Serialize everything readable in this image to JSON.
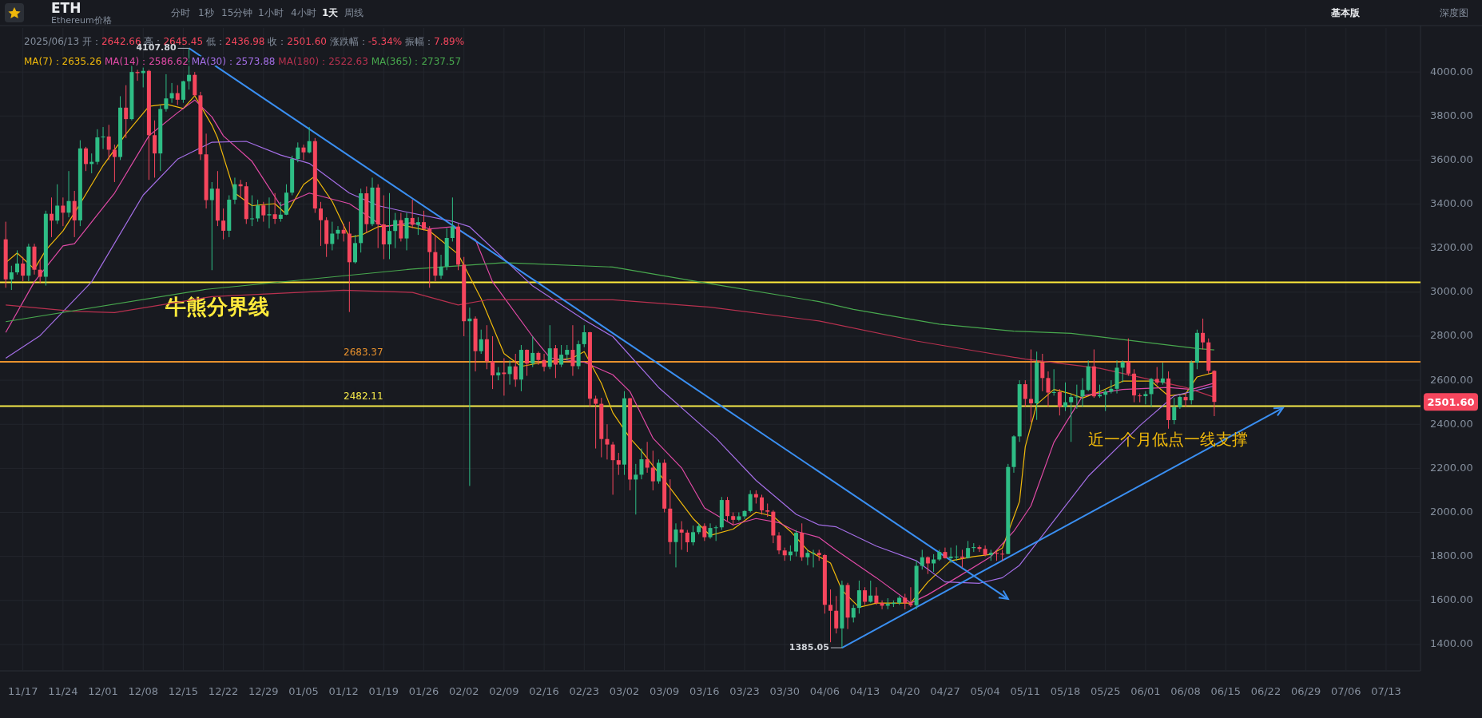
{
  "chart_data": {
    "type": "candlestick",
    "title": "ETH",
    "subtitle": "Ethereum价格",
    "x": [
      "2024-11-14",
      "2024-11-15",
      "2024-11-16",
      "2024-11-17",
      "2024-11-18",
      "2024-11-19",
      "2024-11-20",
      "2024-11-21",
      "2024-11-22",
      "2024-11-23",
      "2024-11-24",
      "2024-11-25",
      "2024-11-26",
      "2024-11-27",
      "2024-11-28",
      "2024-11-29",
      "2024-11-30",
      "2024-12-01",
      "2024-12-02",
      "2024-12-03",
      "2024-12-04",
      "2024-12-05",
      "2024-12-06",
      "2024-12-07",
      "2024-12-08",
      "2024-12-09",
      "2024-12-10",
      "2024-12-11",
      "2024-12-12",
      "2024-12-13",
      "2024-12-14",
      "2024-12-15",
      "2024-12-16",
      "2024-12-17",
      "2024-12-18",
      "2024-12-19",
      "2024-12-20",
      "2024-12-21",
      "2024-12-22",
      "2024-12-23",
      "2024-12-24",
      "2024-12-25",
      "2024-12-26",
      "2024-12-27",
      "2024-12-28",
      "2024-12-29",
      "2024-12-30",
      "2024-12-31",
      "2025-01-01",
      "2025-01-02",
      "2025-01-03",
      "2025-01-04",
      "2025-01-05",
      "2025-01-06",
      "2025-01-07",
      "2025-01-08",
      "2025-01-09",
      "2025-01-10",
      "2025-01-11",
      "2025-01-12",
      "2025-01-13",
      "2025-01-14",
      "2025-01-15",
      "2025-01-16",
      "2025-01-17",
      "2025-01-18",
      "2025-01-19",
      "2025-01-20",
      "2025-01-21",
      "2025-01-22",
      "2025-01-23",
      "2025-01-24",
      "2025-01-25",
      "2025-01-26",
      "2025-01-27",
      "2025-01-28",
      "2025-01-29",
      "2025-01-30",
      "2025-01-31",
      "2025-02-01",
      "2025-02-02",
      "2025-02-03",
      "2025-02-04",
      "2025-02-05",
      "2025-02-06",
      "2025-02-07",
      "2025-02-08",
      "2025-02-09",
      "2025-02-10",
      "2025-02-11",
      "2025-02-12",
      "2025-02-13",
      "2025-02-14",
      "2025-02-15",
      "2025-02-16",
      "2025-02-17",
      "2025-02-18",
      "2025-02-19",
      "2025-02-20",
      "2025-02-21",
      "2025-02-22",
      "2025-02-23",
      "2025-02-24",
      "2025-02-25",
      "2025-02-26",
      "2025-02-27",
      "2025-02-28",
      "2025-03-01",
      "2025-03-02",
      "2025-03-03",
      "2025-03-04",
      "2025-03-05",
      "2025-03-06",
      "2025-03-07",
      "2025-03-08",
      "2025-03-09",
      "2025-03-10",
      "2025-03-11",
      "2025-03-12",
      "2025-03-13",
      "2025-03-14",
      "2025-03-15",
      "2025-03-16",
      "2025-03-17",
      "2025-03-18",
      "2025-03-19",
      "2025-03-20",
      "2025-03-21",
      "2025-03-22",
      "2025-03-23",
      "2025-03-24",
      "2025-03-25",
      "2025-03-26",
      "2025-03-27",
      "2025-03-28",
      "2025-03-29",
      "2025-03-30",
      "2025-03-31",
      "2025-04-01",
      "2025-04-02",
      "2025-04-03",
      "2025-04-04",
      "2025-04-05",
      "2025-04-06",
      "2025-04-07",
      "2025-04-08",
      "2025-04-09",
      "2025-04-10",
      "2025-04-11",
      "2025-04-12",
      "2025-04-13",
      "2025-04-14",
      "2025-04-15",
      "2025-04-16",
      "2025-04-17",
      "2025-04-18",
      "2025-04-19",
      "2025-04-20",
      "2025-04-21",
      "2025-04-22",
      "2025-04-23",
      "2025-04-24",
      "2025-04-25",
      "2025-04-26",
      "2025-04-27",
      "2025-04-28",
      "2025-04-29",
      "2025-04-30",
      "2025-05-01",
      "2025-05-02",
      "2025-05-03",
      "2025-05-04",
      "2025-05-05",
      "2025-05-06",
      "2025-05-07",
      "2025-05-08",
      "2025-05-09",
      "2025-05-10",
      "2025-05-11",
      "2025-05-12",
      "2025-05-13",
      "2025-05-14",
      "2025-05-15",
      "2025-05-16",
      "2025-05-17",
      "2025-05-18",
      "2025-05-19",
      "2025-05-20",
      "2025-05-21",
      "2025-05-22",
      "2025-05-23",
      "2025-05-24",
      "2025-05-25",
      "2025-05-26",
      "2025-05-27",
      "2025-05-28",
      "2025-05-29",
      "2025-05-30",
      "2025-05-31",
      "2025-06-01",
      "2025-06-02",
      "2025-06-03",
      "2025-06-04",
      "2025-06-05",
      "2025-06-06",
      "2025-06-07",
      "2025-06-08",
      "2025-06-09",
      "2025-06-10",
      "2025-06-11",
      "2025-06-12",
      "2025-06-13"
    ],
    "ohlc": [
      [
        3240,
        3320,
        3020,
        3058
      ],
      [
        3058,
        3120,
        3010,
        3090
      ],
      [
        3090,
        3190,
        3080,
        3130
      ],
      [
        3130,
        3160,
        3050,
        3075
      ],
      [
        3075,
        3220,
        3050,
        3207
      ],
      [
        3207,
        3220,
        3080,
        3102
      ],
      [
        3102,
        3150,
        3040,
        3070
      ],
      [
        3070,
        3370,
        3030,
        3356
      ],
      [
        3356,
        3430,
        3250,
        3325
      ],
      [
        3325,
        3490,
        3310,
        3393
      ],
      [
        3393,
        3430,
        3300,
        3361
      ],
      [
        3361,
        3550,
        3340,
        3414
      ],
      [
        3414,
        3460,
        3250,
        3326
      ],
      [
        3326,
        3690,
        3300,
        3653
      ],
      [
        3653,
        3660,
        3550,
        3582
      ],
      [
        3582,
        3630,
        3540,
        3592
      ],
      [
        3592,
        3740,
        3580,
        3703
      ],
      [
        3703,
        3750,
        3650,
        3707
      ],
      [
        3707,
        3760,
        3600,
        3647
      ],
      [
        3647,
        3670,
        3500,
        3614
      ],
      [
        3614,
        3890,
        3600,
        3838
      ],
      [
        3838,
        3940,
        3700,
        3786
      ],
      [
        3786,
        4030,
        3780,
        4000
      ],
      [
        4000,
        4010,
        3960,
        3995
      ],
      [
        3995,
        4020,
        3930,
        4005
      ],
      [
        4005,
        4010,
        3510,
        3713
      ],
      [
        3713,
        3780,
        3520,
        3630
      ],
      [
        3630,
        3850,
        3550,
        3832
      ],
      [
        3832,
        3990,
        3820,
        3880
      ],
      [
        3880,
        3950,
        3860,
        3904
      ],
      [
        3904,
        3940,
        3850,
        3874
      ],
      [
        3874,
        3960,
        3860,
        3958
      ],
      [
        3958,
        4107.8,
        3920,
        3987
      ],
      [
        3987,
        4000,
        3890,
        3894
      ],
      [
        3894,
        3910,
        3600,
        3626
      ],
      [
        3626,
        3720,
        3380,
        3418
      ],
      [
        3418,
        3500,
        3100,
        3470
      ],
      [
        3470,
        3550,
        3300,
        3325
      ],
      [
        3325,
        3380,
        3240,
        3279
      ],
      [
        3279,
        3440,
        3250,
        3420
      ],
      [
        3420,
        3520,
        3400,
        3490
      ],
      [
        3490,
        3510,
        3430,
        3481
      ],
      [
        3481,
        3500,
        3310,
        3332
      ],
      [
        3332,
        3440,
        3300,
        3335
      ],
      [
        3335,
        3420,
        3320,
        3394
      ],
      [
        3394,
        3410,
        3320,
        3349
      ],
      [
        3349,
        3430,
        3290,
        3354
      ],
      [
        3354,
        3450,
        3310,
        3333
      ],
      [
        3333,
        3410,
        3320,
        3352
      ],
      [
        3352,
        3490,
        3350,
        3452
      ],
      [
        3452,
        3620,
        3440,
        3605
      ],
      [
        3605,
        3680,
        3590,
        3657
      ],
      [
        3657,
        3670,
        3600,
        3635
      ],
      [
        3635,
        3750,
        3630,
        3686
      ],
      [
        3686,
        3700,
        3360,
        3380
      ],
      [
        3380,
        3410,
        3210,
        3327
      ],
      [
        3327,
        3340,
        3160,
        3219
      ],
      [
        3219,
        3320,
        3190,
        3266
      ],
      [
        3266,
        3300,
        3240,
        3283
      ],
      [
        3283,
        3310,
        3230,
        3266
      ],
      [
        3266,
        3320,
        2910,
        3136
      ],
      [
        3136,
        3260,
        3130,
        3223
      ],
      [
        3223,
        3470,
        3180,
        3449
      ],
      [
        3449,
        3480,
        3270,
        3309
      ],
      [
        3309,
        3520,
        3300,
        3475
      ],
      [
        3475,
        3490,
        3200,
        3308
      ],
      [
        3308,
        3440,
        3150,
        3217
      ],
      [
        3217,
        3450,
        3150,
        3278
      ],
      [
        3278,
        3360,
        3200,
        3327
      ],
      [
        3327,
        3360,
        3230,
        3244
      ],
      [
        3244,
        3360,
        3190,
        3337
      ],
      [
        3337,
        3420,
        3290,
        3306
      ],
      [
        3306,
        3340,
        3260,
        3318
      ],
      [
        3318,
        3370,
        3280,
        3287
      ],
      [
        3287,
        3300,
        3020,
        3182
      ],
      [
        3182,
        3260,
        3050,
        3075
      ],
      [
        3075,
        3170,
        3060,
        3116
      ],
      [
        3116,
        3290,
        3100,
        3246
      ],
      [
        3246,
        3430,
        3230,
        3298
      ],
      [
        3298,
        3310,
        3100,
        3125
      ],
      [
        3125,
        3160,
        2800,
        2868
      ],
      [
        2868,
        2930,
        2120,
        2880
      ],
      [
        2880,
        2890,
        2640,
        2732
      ],
      [
        2732,
        2830,
        2720,
        2786
      ],
      [
        2786,
        2850,
        2650,
        2686
      ],
      [
        2686,
        2800,
        2560,
        2622
      ],
      [
        2622,
        2660,
        2600,
        2635
      ],
      [
        2635,
        2700,
        2530,
        2628
      ],
      [
        2628,
        2690,
        2580,
        2663
      ],
      [
        2663,
        2720,
        2570,
        2603
      ],
      [
        2603,
        2760,
        2550,
        2738
      ],
      [
        2738,
        2740,
        2620,
        2676
      ],
      [
        2676,
        2800,
        2660,
        2724
      ],
      [
        2724,
        2730,
        2670,
        2692
      ],
      [
        2692,
        2720,
        2640,
        2661
      ],
      [
        2661,
        2850,
        2650,
        2745
      ],
      [
        2745,
        2760,
        2610,
        2671
      ],
      [
        2671,
        2760,
        2660,
        2716
      ],
      [
        2716,
        2760,
        2690,
        2738
      ],
      [
        2738,
        2850,
        2620,
        2664
      ],
      [
        2664,
        2780,
        2650,
        2764
      ],
      [
        2764,
        2850,
        2750,
        2818
      ],
      [
        2818,
        2820,
        2480,
        2516
      ],
      [
        2516,
        2530,
        2290,
        2493
      ],
      [
        2493,
        2520,
        2250,
        2333
      ],
      [
        2333,
        2400,
        2240,
        2308
      ],
      [
        2308,
        2320,
        2080,
        2237
      ],
      [
        2237,
        2270,
        2170,
        2217
      ],
      [
        2217,
        2550,
        2170,
        2518
      ],
      [
        2518,
        2520,
        2100,
        2149
      ],
      [
        2149,
        2220,
        1990,
        2171
      ],
      [
        2171,
        2290,
        2150,
        2241
      ],
      [
        2241,
        2320,
        2180,
        2203
      ],
      [
        2203,
        2280,
        2100,
        2141
      ],
      [
        2141,
        2240,
        2130,
        2225
      ],
      [
        2225,
        2240,
        2000,
        2017
      ],
      [
        2017,
        2150,
        1810,
        1865
      ],
      [
        1865,
        1950,
        1750,
        1922
      ],
      [
        1922,
        1960,
        1830,
        1908
      ],
      [
        1908,
        1920,
        1820,
        1864
      ],
      [
        1864,
        1940,
        1850,
        1910
      ],
      [
        1910,
        1950,
        1900,
        1938
      ],
      [
        1938,
        1950,
        1870,
        1887
      ],
      [
        1887,
        1950,
        1880,
        1929
      ],
      [
        1929,
        1940,
        1870,
        1932
      ],
      [
        1932,
        2070,
        1920,
        2056
      ],
      [
        2056,
        2070,
        1960,
        1983
      ],
      [
        1983,
        2000,
        1940,
        1966
      ],
      [
        1966,
        2000,
        1960,
        1982
      ],
      [
        1982,
        2010,
        1970,
        2006
      ],
      [
        2006,
        2100,
        2000,
        2083
      ],
      [
        2083,
        2100,
        2040,
        2068
      ],
      [
        2068,
        2080,
        1990,
        2009
      ],
      [
        2009,
        2040,
        1980,
        2003
      ],
      [
        2003,
        2010,
        1860,
        1895
      ],
      [
        1895,
        1910,
        1810,
        1827
      ],
      [
        1827,
        1840,
        1780,
        1805
      ],
      [
        1805,
        1850,
        1780,
        1822
      ],
      [
        1822,
        1920,
        1800,
        1907
      ],
      [
        1907,
        1950,
        1780,
        1796
      ],
      [
        1796,
        1830,
        1760,
        1816
      ],
      [
        1816,
        1830,
        1750,
        1816
      ],
      [
        1816,
        1830,
        1780,
        1806
      ],
      [
        1806,
        1810,
        1540,
        1580
      ],
      [
        1580,
        1650,
        1410,
        1553
      ],
      [
        1553,
        1620,
        1450,
        1473
      ],
      [
        1473,
        1690,
        1385.05,
        1670
      ],
      [
        1670,
        1680,
        1470,
        1522
      ],
      [
        1522,
        1580,
        1500,
        1566
      ],
      [
        1566,
        1690,
        1540,
        1646
      ],
      [
        1646,
        1660,
        1580,
        1594
      ],
      [
        1594,
        1690,
        1590,
        1622
      ],
      [
        1622,
        1660,
        1580,
        1588
      ],
      [
        1588,
        1600,
        1560,
        1576
      ],
      [
        1576,
        1610,
        1560,
        1584
      ],
      [
        1584,
        1600,
        1570,
        1589
      ],
      [
        1589,
        1620,
        1580,
        1612
      ],
      [
        1612,
        1630,
        1560,
        1587
      ],
      [
        1587,
        1660,
        1570,
        1578
      ],
      [
        1578,
        1780,
        1560,
        1757
      ],
      [
        1757,
        1830,
        1740,
        1796
      ],
      [
        1796,
        1800,
        1720,
        1768
      ],
      [
        1768,
        1810,
        1730,
        1786
      ],
      [
        1786,
        1830,
        1780,
        1820
      ],
      [
        1820,
        1840,
        1790,
        1792
      ],
      [
        1792,
        1840,
        1770,
        1799
      ],
      [
        1799,
        1850,
        1780,
        1799
      ],
      [
        1799,
        1830,
        1750,
        1793
      ],
      [
        1793,
        1870,
        1790,
        1838
      ],
      [
        1838,
        1860,
        1820,
        1842
      ],
      [
        1842,
        1850,
        1820,
        1834
      ],
      [
        1834,
        1850,
        1800,
        1807
      ],
      [
        1807,
        1830,
        1780,
        1816
      ],
      [
        1816,
        1820,
        1780,
        1812
      ],
      [
        1812,
        1830,
        1780,
        1811
      ],
      [
        1811,
        2220,
        1810,
        2206
      ],
      [
        2206,
        2350,
        2180,
        2345
      ],
      [
        2345,
        2600,
        2320,
        2582
      ],
      [
        2582,
        2600,
        2480,
        2515
      ],
      [
        2515,
        2740,
        2410,
        2495
      ],
      [
        2495,
        2730,
        2420,
        2680
      ],
      [
        2680,
        2720,
        2550,
        2610
      ],
      [
        2610,
        2640,
        2480,
        2544
      ],
      [
        2544,
        2650,
        2530,
        2546
      ],
      [
        2546,
        2560,
        2440,
        2479
      ],
      [
        2479,
        2590,
        2460,
        2500
      ],
      [
        2500,
        2540,
        2320,
        2524
      ],
      [
        2524,
        2580,
        2470,
        2526
      ],
      [
        2526,
        2610,
        2480,
        2556
      ],
      [
        2556,
        2690,
        2550,
        2663
      ],
      [
        2663,
        2740,
        2520,
        2527
      ],
      [
        2527,
        2580,
        2520,
        2534
      ],
      [
        2534,
        2560,
        2460,
        2548
      ],
      [
        2548,
        2600,
        2540,
        2561
      ],
      [
        2561,
        2690,
        2540,
        2657
      ],
      [
        2657,
        2690,
        2590,
        2683
      ],
      [
        2683,
        2790,
        2620,
        2630
      ],
      [
        2630,
        2650,
        2500,
        2531
      ],
      [
        2531,
        2540,
        2500,
        2528
      ],
      [
        2528,
        2550,
        2490,
        2537
      ],
      [
        2537,
        2610,
        2480,
        2606
      ],
      [
        2606,
        2660,
        2580,
        2589
      ],
      [
        2589,
        2680,
        2580,
        2608
      ],
      [
        2608,
        2640,
        2380,
        2419
      ],
      [
        2419,
        2520,
        2400,
        2478
      ],
      [
        2478,
        2530,
        2470,
        2524
      ],
      [
        2524,
        2540,
        2480,
        2509
      ],
      [
        2509,
        2690,
        2490,
        2680
      ],
      [
        2680,
        2830,
        2650,
        2815
      ],
      [
        2815,
        2880,
        2740,
        2772
      ],
      [
        2772,
        2790,
        2630,
        2643
      ],
      [
        2642.66,
        2645.45,
        2436.98,
        2501.6
      ]
    ],
    "series": [
      {
        "name": "MA(7)：",
        "type": "line",
        "color": "#f0b90b",
        "x": [
          "2024-11-14",
          "2024-11-16",
          "2024-11-19",
          "2024-11-21",
          "2024-11-24",
          "2024-11-27",
          "2024-12-01",
          "2024-12-05",
          "2024-12-09",
          "2024-12-12",
          "2024-12-15",
          "2024-12-17",
          "2024-12-20",
          "2024-12-21",
          "2024-12-24",
          "2024-12-27",
          "2024-12-31",
          "2025-01-02",
          "2025-01-05",
          "2025-01-07",
          "2025-01-10",
          "2025-01-13",
          "2025-01-15",
          "2025-01-18",
          "2025-01-22",
          "2025-01-27",
          "2025-02-01",
          "2025-02-05",
          "2025-02-09",
          "2025-02-12",
          "2025-02-16",
          "2025-02-21",
          "2025-02-23",
          "2025-02-26",
          "2025-02-28",
          "2025-03-03",
          "2025-03-05",
          "2025-03-09",
          "2025-03-14",
          "2025-03-17",
          "2025-03-21",
          "2025-03-25",
          "2025-03-28",
          "2025-03-31",
          "2025-04-03",
          "2025-04-07",
          "2025-04-09",
          "2025-04-12",
          "2025-04-15",
          "2025-04-21",
          "2025-04-24",
          "2025-04-28",
          "2025-05-02",
          "2025-05-05",
          "2025-05-07",
          "2025-05-10",
          "2025-05-11",
          "2025-05-13",
          "2025-05-16",
          "2025-05-19",
          "2025-05-21",
          "2025-05-24",
          "2025-05-28",
          "2025-06-02",
          "2025-06-05",
          "2025-06-08",
          "2025-06-10",
          "2025-06-13"
        ],
        "values": [
          3134,
          3178,
          3105,
          3191,
          3278,
          3402,
          3575,
          3719,
          3844,
          3854,
          3834,
          3892,
          3758,
          3700,
          3450,
          3393,
          3402,
          3354,
          3489,
          3527,
          3412,
          3249,
          3258,
          3297,
          3306,
          3278,
          3172,
          2970,
          2721,
          2663,
          2682,
          2702,
          2730,
          2586,
          2452,
          2337,
          2279,
          2145,
          1972,
          1895,
          1924,
          2001,
          1982,
          1914,
          1828,
          1770,
          1646,
          1569,
          1588,
          1588,
          1684,
          1780,
          1799,
          1809,
          1838,
          2050,
          2298,
          2490,
          2558,
          2538,
          2519,
          2548,
          2596,
          2596,
          2529,
          2538,
          2615,
          2635
        ]
      },
      {
        "name": "MA(14)：",
        "type": "line",
        "color": "#e04aa6",
        "x": [
          "2024-11-14",
          "2024-11-19",
          "2024-11-24",
          "2024-11-26",
          "2024-12-03",
          "2024-12-09",
          "2024-12-14",
          "2024-12-17",
          "2024-12-20",
          "2024-12-22",
          "2024-12-27",
          "2025-01-01",
          "2025-01-06",
          "2025-01-13",
          "2025-01-19",
          "2025-01-24",
          "2025-01-27",
          "2025-01-31",
          "2025-02-04",
          "2025-02-07",
          "2025-02-14",
          "2025-02-17",
          "2025-02-23",
          "2025-02-28",
          "2025-03-03",
          "2025-03-07",
          "2025-03-12",
          "2025-03-16",
          "2025-03-21",
          "2025-03-25",
          "2025-03-29",
          "2025-04-01",
          "2025-04-05",
          "2025-04-08",
          "2025-04-15",
          "2025-04-21",
          "2025-04-24",
          "2025-04-29",
          "2025-05-05",
          "2025-05-09",
          "2025-05-12",
          "2025-05-16",
          "2025-05-21",
          "2025-05-28",
          "2025-06-05",
          "2025-06-09",
          "2025-06-13"
        ],
        "values": [
          2817,
          3047,
          3210,
          3220,
          3450,
          3710,
          3815,
          3873,
          3796,
          3710,
          3594,
          3393,
          3450,
          3402,
          3297,
          3316,
          3287,
          3297,
          3239,
          3047,
          2798,
          2702,
          2682,
          2625,
          2548,
          2337,
          2202,
          2020,
          1943,
          1972,
          1953,
          1914,
          1886,
          1828,
          1703,
          1588,
          1626,
          1703,
          1799,
          1914,
          2030,
          2318,
          2529,
          2558,
          2567,
          2558,
          2587
        ]
      },
      {
        "name": "MA(30)：",
        "type": "line",
        "color": "#a46ee6",
        "x": [
          "2024-11-14",
          "2024-11-20",
          "2024-11-29",
          "2024-12-08",
          "2024-12-14",
          "2024-12-20",
          "2024-12-26",
          "2025-01-01",
          "2025-01-06",
          "2025-01-13",
          "2025-01-18",
          "2025-01-23",
          "2025-01-31",
          "2025-02-03",
          "2025-02-14",
          "2025-02-23",
          "2025-02-28",
          "2025-03-08",
          "2025-03-18",
          "2025-03-25",
          "2025-04-01",
          "2025-04-05",
          "2025-04-08",
          "2025-04-15",
          "2025-04-22",
          "2025-04-27",
          "2025-05-03",
          "2025-05-07",
          "2025-05-10",
          "2025-05-22",
          "2025-05-31",
          "2025-06-06",
          "2025-06-13"
        ],
        "values": [
          2700,
          2803,
          3047,
          3441,
          3604,
          3681,
          3685,
          3623,
          3585,
          3450,
          3393,
          3364,
          3322,
          3297,
          3028,
          2874,
          2798,
          2567,
          2337,
          2145,
          1991,
          1943,
          1934,
          1847,
          1780,
          1684,
          1678,
          1703,
          1760,
          2164,
          2394,
          2529,
          2574
        ]
      },
      {
        "name": "MA(180)：",
        "type": "line",
        "color": "#b8314f",
        "x": [
          "2024-11-14",
          "2024-11-26",
          "2024-12-03",
          "2024-12-20",
          "2025-01-12",
          "2025-01-24",
          "2025-02-01",
          "2025-02-06",
          "2025-02-28",
          "2025-03-17",
          "2025-04-05",
          "2025-04-22",
          "2025-05-03",
          "2025-05-11",
          "2025-05-24",
          "2025-06-08",
          "2025-06-13"
        ],
        "values": [
          2942,
          2913,
          2907,
          2980,
          3009,
          2999,
          2942,
          2965,
          2965,
          2932,
          2869,
          2778,
          2730,
          2696,
          2654,
          2567,
          2523
        ]
      },
      {
        "name": "MA(365)：",
        "type": "line",
        "color": "#48a84e",
        "x": [
          "2024-11-14",
          "2024-12-19",
          "2025-01-24",
          "2025-02-09",
          "2025-02-28",
          "2025-03-15",
          "2025-04-05",
          "2025-04-11",
          "2025-04-26",
          "2025-05-09",
          "2025-05-19",
          "2025-06-10",
          "2025-06-13"
        ],
        "values": [
          2866,
          3013,
          3105,
          3134,
          3114,
          3047,
          2957,
          2922,
          2855,
          2823,
          2813,
          2744,
          2738
        ]
      },
      {
        "type": "line",
        "color": "#3a8ff2",
        "x": [
          "2024-12-16",
          "2025-05-08"
        ],
        "values": [
          4108,
          1607
        ]
      },
      {
        "type": "line",
        "color": "#3a8ff2",
        "x": [
          "2025-04-09",
          "2025-06-25"
        ],
        "values": [
          1385,
          2475
        ]
      }
    ],
    "xlim": [
      "2024-11-13",
      "2025-07-19"
    ],
    "ylim": [
      1280,
      4200
    ],
    "xticks": [
      {
        "value": "2024-11-17",
        "label": "11/17"
      },
      {
        "value": "2024-11-24",
        "label": "11/24"
      },
      {
        "value": "2024-12-01",
        "label": "12/01"
      },
      {
        "value": "2024-12-08",
        "label": "12/08"
      },
      {
        "value": "2024-12-15",
        "label": "12/15"
      },
      {
        "value": "2024-12-22",
        "label": "12/22"
      },
      {
        "value": "2024-12-29",
        "label": "12/29"
      },
      {
        "value": "2025-01-05",
        "label": "01/05"
      },
      {
        "value": "2025-01-12",
        "label": "01/12"
      },
      {
        "value": "2025-01-19",
        "label": "01/19"
      },
      {
        "value": "2025-01-26",
        "label": "01/26"
      },
      {
        "value": "2025-02-02",
        "label": "02/02"
      },
      {
        "value": "2025-02-09",
        "label": "02/09"
      },
      {
        "value": "2025-02-16",
        "label": "02/16"
      },
      {
        "value": "2025-02-23",
        "label": "02/23"
      },
      {
        "value": "2025-03-02",
        "label": "03/02"
      },
      {
        "value": "2025-03-09",
        "label": "03/09"
      },
      {
        "value": "2025-03-16",
        "label": "03/16"
      },
      {
        "value": "2025-03-23",
        "label": "03/23"
      },
      {
        "value": "2025-03-30",
        "label": "03/30"
      },
      {
        "value": "2025-04-06",
        "label": "04/06"
      },
      {
        "value": "2025-04-13",
        "label": "04/13"
      },
      {
        "value": "2025-04-20",
        "label": "04/20"
      },
      {
        "value": "2025-04-27",
        "label": "04/27"
      },
      {
        "value": "2025-05-04",
        "label": "05/04"
      },
      {
        "value": "2025-05-11",
        "label": "05/11"
      },
      {
        "value": "2025-05-18",
        "label": "05/18"
      },
      {
        "value": "2025-05-25",
        "label": "05/25"
      },
      {
        "value": "2025-06-01",
        "label": "06/01"
      },
      {
        "value": "2025-06-08",
        "label": "06/08"
      },
      {
        "value": "2025-06-15",
        "label": "06/15"
      },
      {
        "value": "2025-06-22",
        "label": "06/22"
      },
      {
        "value": "2025-06-29",
        "label": "06/29"
      },
      {
        "value": "2025-07-06",
        "label": "07/06"
      },
      {
        "value": "2025-07-13",
        "label": "07/13"
      }
    ],
    "yticks": [
      {
        "value": 1400,
        "label": "1400.00"
      },
      {
        "value": 1600,
        "label": "1600.00"
      },
      {
        "value": 1800,
        "label": "1800.00"
      },
      {
        "value": 2000,
        "label": "2000.00"
      },
      {
        "value": 2200,
        "label": "2200.00"
      },
      {
        "value": 2400,
        "label": "2400.00"
      },
      {
        "value": 2600,
        "label": "2600.00"
      },
      {
        "value": 2800,
        "label": "2800.00"
      },
      {
        "value": 3000,
        "label": "3000.00"
      },
      {
        "value": 3200,
        "label": "3200.00"
      },
      {
        "value": 3400,
        "label": "3400.00"
      },
      {
        "value": 3600,
        "label": "3600.00"
      },
      {
        "value": 3800,
        "label": "3800.00"
      },
      {
        "value": 4000,
        "label": "4000.00"
      }
    ],
    "ref_lines": [
      {
        "axis": "y",
        "value": 3045,
        "label": "牛熊分界线",
        "color": "#ffeb3b"
      },
      {
        "axis": "y",
        "value": 2683.37,
        "label": "2683.37",
        "color": "#e8912d"
      },
      {
        "axis": "y",
        "value": 2482.11,
        "label": "2482.11",
        "color": "#f5e94a"
      }
    ],
    "grid": true,
    "legend": "top left",
    "marker": "none",
    "line_style": "solid",
    "annotations": [
      "2025/06/13 开：2642.66 高：2645.45 低：2436.98 收：2501.60 涨跌幅：-5.34% 振幅：7.89%",
      "2635.26",
      "2586.62",
      "2573.88",
      "2522.63",
      "2737.57",
      {
        "text": "4107.80",
        "x": "2024-12-16",
        "y": 4107.8
      },
      {
        "text": "1385.05",
        "x": "2025-04-09",
        "y": 1385.05
      },
      "2501.60",
      "近一个月低点一线支撑",
      "分时",
      "1秒",
      "15分钟",
      "1小时",
      "4小时",
      "1天",
      "周线",
      "基本版",
      "深度图"
    ]
  }
}
